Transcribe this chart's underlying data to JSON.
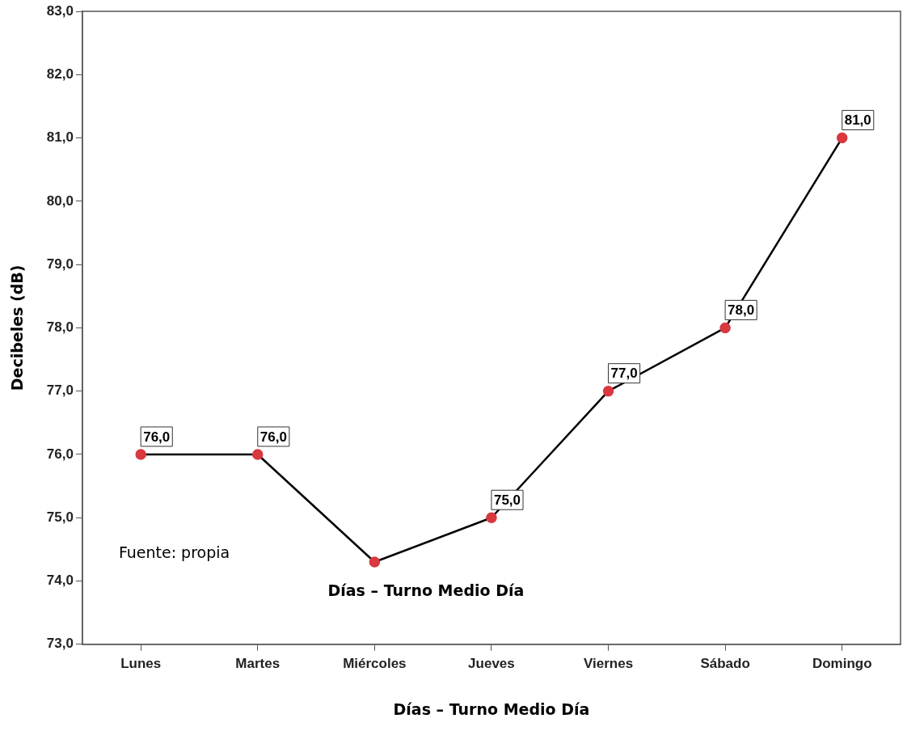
{
  "chart_data": {
    "type": "line",
    "xlabel": "Días – Turno Medio Día",
    "ylabel": "Decibeles (dB)",
    "categories": [
      "Lunes",
      "Martes",
      "Miércoles",
      "Jueves",
      "Viernes",
      "Sábado",
      "Domingo"
    ],
    "values": [
      76.0,
      76.0,
      74.3,
      75.0,
      77.0,
      78.0,
      81.0
    ],
    "value_labels": [
      "76,0",
      "76,0",
      null,
      "75,0",
      "77,0",
      "78,0",
      "81,0"
    ],
    "color": "#000000",
    "colors": [
      "#d9383f",
      "#d9383f",
      "#d9383f",
      "#d9383f",
      "#d9383f",
      "#d9383f",
      "#d9383f"
    ],
    "marker": "circle",
    "line_style": "solid",
    "ylim": [
      73,
      83
    ],
    "yticks": [
      {
        "value": 73,
        "label": "73,0"
      },
      {
        "value": 74,
        "label": "74,0"
      },
      {
        "value": 75,
        "label": "75,0"
      },
      {
        "value": 76,
        "label": "76,0"
      },
      {
        "value": 77,
        "label": "77,0"
      },
      {
        "value": 78,
        "label": "78,0"
      },
      {
        "value": 79,
        "label": "79,0"
      },
      {
        "value": 80,
        "label": "80,0"
      },
      {
        "value": 81,
        "label": "81,0"
      },
      {
        "value": 82,
        "label": "82,0"
      },
      {
        "value": 83,
        "label": "83,0"
      }
    ],
    "grid": false,
    "legend": false,
    "annotations": [
      "Días – Turno Medio Día",
      "Fuente: propia"
    ]
  }
}
